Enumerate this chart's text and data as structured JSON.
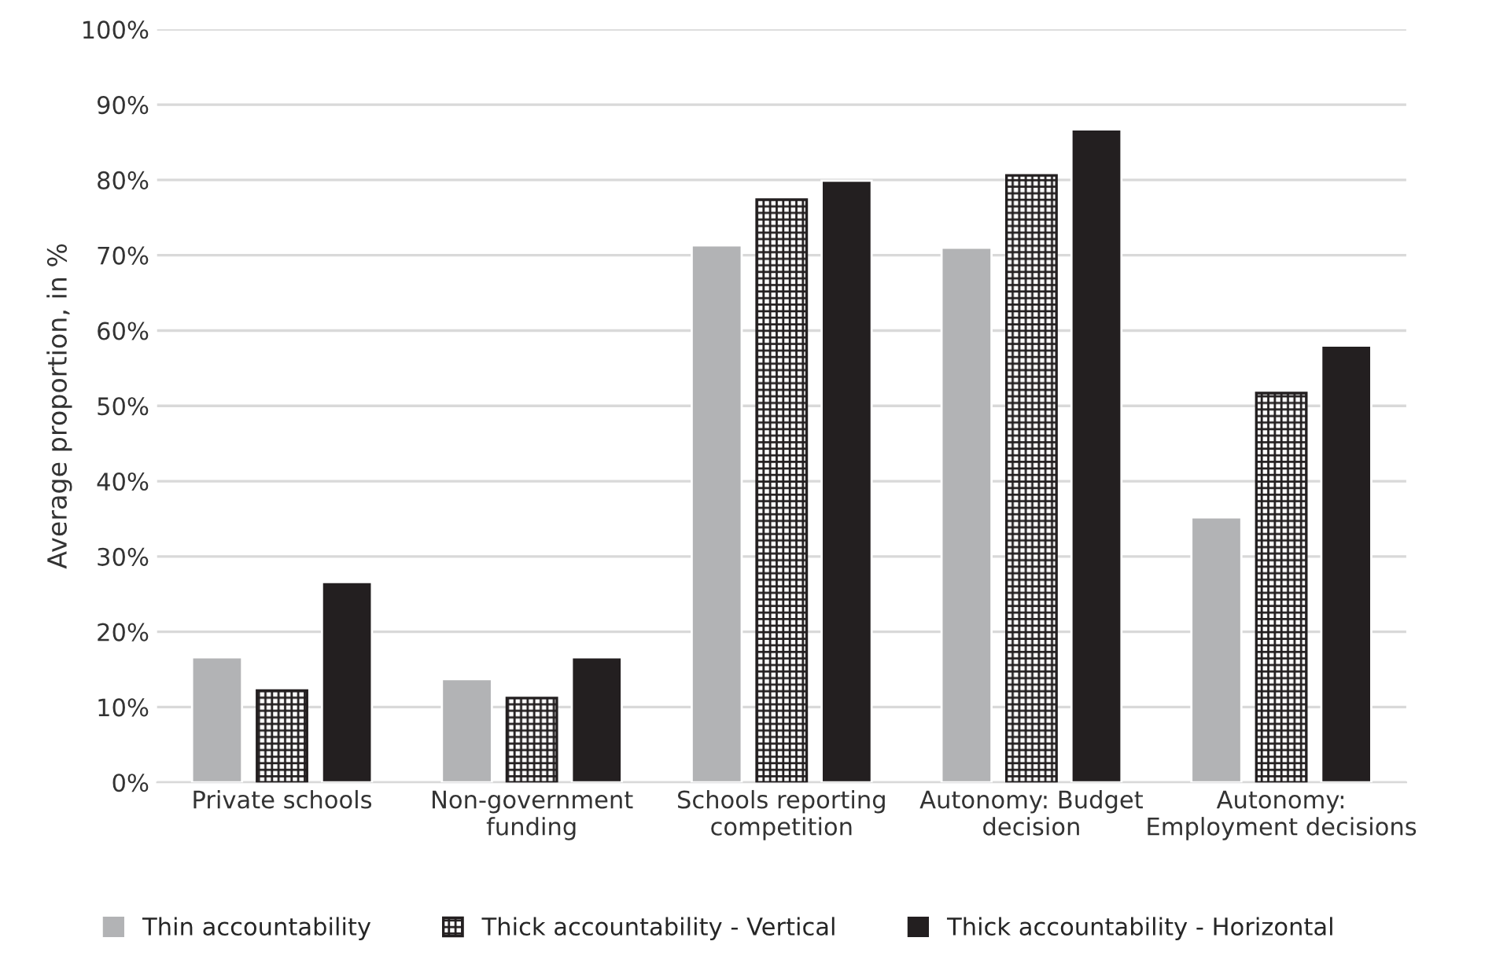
{
  "chart_data": {
    "type": "bar",
    "ylabel": "Average proportion, in %",
    "categories": [
      "Private schools",
      "Non-government\nfunding",
      "Schools reporting\ncompetition",
      "Autonomy: Budget\ndecision",
      "Autonomy:\nEmployment decisions"
    ],
    "series": [
      {
        "name": "Thin accountability",
        "color": "#b2b3b5",
        "values": [
          16.6,
          13.7,
          71.3,
          71.0,
          35.2
        ]
      },
      {
        "name": "Thick accountability - Vertical",
        "color": "#231f20",
        "values": [
          12.2,
          11.2,
          77.4,
          80.6,
          51.7
        ]
      },
      {
        "name": "Thick accountability - Horizontal",
        "color": "#231f20",
        "values": [
          26.6,
          16.6,
          79.9,
          86.7,
          58.0
        ]
      }
    ],
    "ylim": [
      0,
      100
    ],
    "yticks": [
      {
        "value": 0,
        "label": "0%"
      },
      {
        "value": 10,
        "label": "10%"
      },
      {
        "value": 20,
        "label": "20%"
      },
      {
        "value": 30,
        "label": "30%"
      },
      {
        "value": 40,
        "label": "40%"
      },
      {
        "value": 50,
        "label": "50%"
      },
      {
        "value": 60,
        "label": "60%"
      },
      {
        "value": 70,
        "label": "70%"
      },
      {
        "value": 80,
        "label": "80%"
      },
      {
        "value": 90,
        "label": "90%"
      },
      {
        "value": 100,
        "label": "100%"
      }
    ],
    "grid": "y",
    "legend": "bottom"
  }
}
